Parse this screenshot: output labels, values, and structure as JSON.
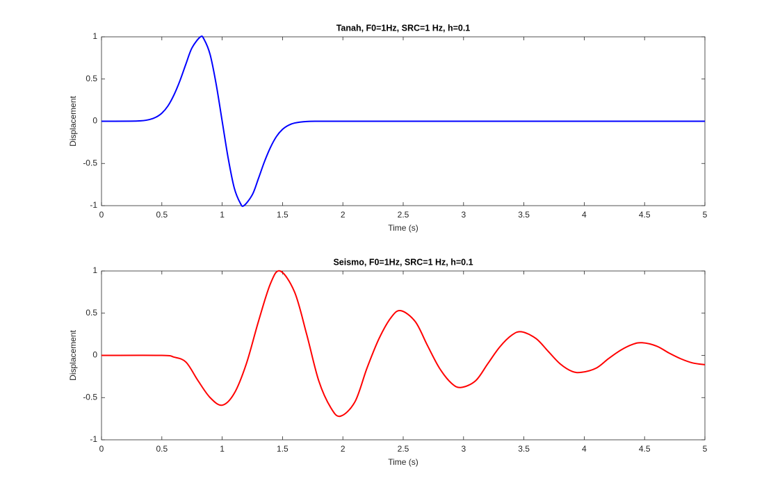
{
  "chart_data": [
    {
      "type": "line",
      "title": "Tanah, F0=1Hz, SRC=1 Hz, h=0.1",
      "xlabel": "Time (s)",
      "ylabel": "Displacement",
      "xlim": [
        0,
        5
      ],
      "ylim": [
        -1,
        1
      ],
      "xticks": [
        0,
        0.5,
        1,
        1.5,
        2,
        2.5,
        3,
        3.5,
        4,
        4.5,
        5
      ],
      "yticks": [
        -1,
        -0.5,
        0,
        0.5,
        1
      ],
      "x": [
        0,
        0.3,
        0.4,
        0.45,
        0.5,
        0.55,
        0.6,
        0.65,
        0.7,
        0.75,
        0.82,
        0.85,
        0.9,
        0.95,
        1,
        1.05,
        1.1,
        1.15,
        1.18,
        1.25,
        1.3,
        1.35,
        1.4,
        1.45,
        1.5,
        1.55,
        1.6,
        1.7,
        1.8,
        2,
        2.5,
        3,
        3.5,
        4,
        4.5,
        5
      ],
      "series": [
        {
          "color": "#0000ff",
          "values": [
            0,
            0.003,
            0.021,
            0.047,
            0.096,
            0.18,
            0.31,
            0.48,
            0.68,
            0.87,
            1,
            0.97,
            0.79,
            0.44,
            0,
            -0.44,
            -0.79,
            -0.97,
            -1,
            -0.87,
            -0.68,
            -0.48,
            -0.31,
            -0.18,
            -0.096,
            -0.047,
            -0.021,
            -0.003,
            0,
            0,
            0,
            0,
            0,
            0,
            0,
            0
          ]
        }
      ]
    },
    {
      "type": "line",
      "title": "Seismo, F0=1Hz, SRC=1 Hz, h=0.1",
      "xlabel": "Time (s)",
      "ylabel": "Displacement",
      "xlim": [
        0,
        5
      ],
      "ylim": [
        -1,
        1
      ],
      "xticks": [
        0,
        0.5,
        1,
        1.5,
        2,
        2.5,
        3,
        3.5,
        4,
        4.5,
        5
      ],
      "yticks": [
        -1,
        -0.5,
        0,
        0.5,
        1
      ],
      "x": [
        0,
        0.5,
        0.6,
        0.7,
        0.8,
        0.9,
        1,
        1.1,
        1.2,
        1.3,
        1.4,
        1.48,
        1.6,
        1.7,
        1.8,
        1.9,
        1.98,
        2.1,
        2.2,
        2.3,
        2.4,
        2.48,
        2.6,
        2.7,
        2.8,
        2.9,
        2.98,
        3.1,
        3.2,
        3.3,
        3.4,
        3.48,
        3.6,
        3.7,
        3.8,
        3.9,
        3.98,
        4.1,
        4.2,
        4.3,
        4.4,
        4.48,
        4.6,
        4.7,
        4.8,
        4.9,
        5
      ],
      "series": [
        {
          "color": "#ff0000",
          "values": [
            0,
            0,
            -0.02,
            -0.08,
            -0.3,
            -0.5,
            -0.59,
            -0.45,
            -0.1,
            0.4,
            0.85,
            1,
            0.75,
            0.25,
            -0.3,
            -0.62,
            -0.72,
            -0.55,
            -0.15,
            0.2,
            0.45,
            0.53,
            0.4,
            0.12,
            -0.15,
            -0.33,
            -0.38,
            -0.3,
            -0.1,
            0.1,
            0.24,
            0.28,
            0.2,
            0.05,
            -0.1,
            -0.19,
            -0.2,
            -0.15,
            -0.04,
            0.06,
            0.13,
            0.15,
            0.11,
            0.03,
            -0.04,
            -0.09,
            -0.11
          ]
        }
      ]
    }
  ]
}
